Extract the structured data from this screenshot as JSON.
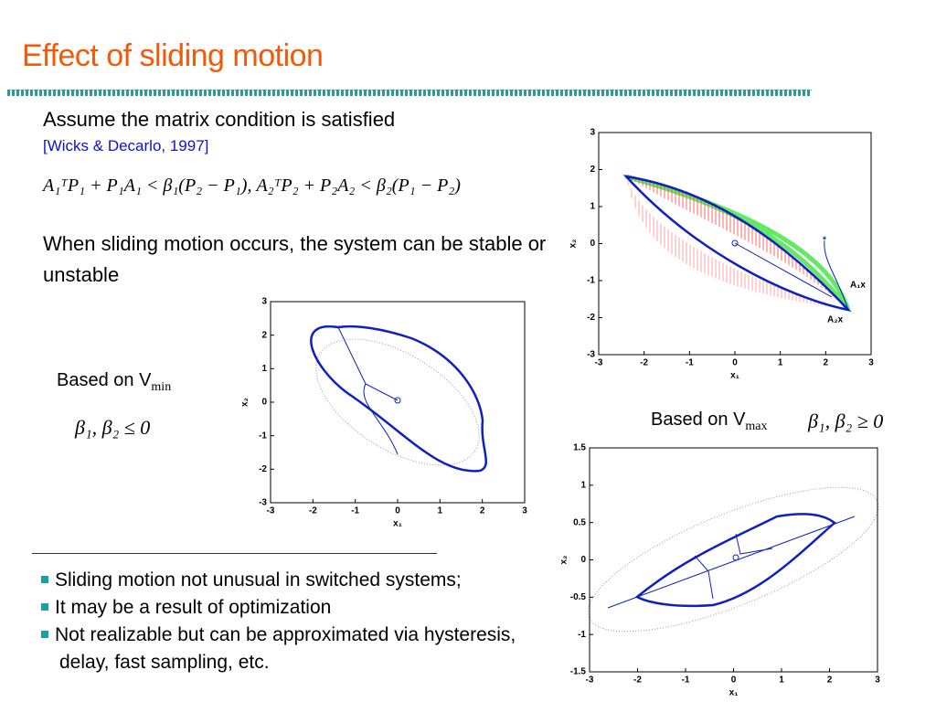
{
  "title": "Effect of sliding motion",
  "condition": {
    "text": "Assume the matrix condition is satisfied",
    "citation": "[Wicks & Decarlo, 1997]",
    "equation": "A₁ᵀP₁ + P₁A₁ < β₁(P₂ − P₁),  A₂ᵀP₂ + P₂A₂ < β₂(P₁ − P₂)"
  },
  "sliding_note": "When sliding motion occurs, the system can be stable or unstable",
  "vmin": {
    "label": "Based on V",
    "subscript": "min",
    "condition": "β₁, β₂ ≤ 0"
  },
  "vmax": {
    "label": "Based on V",
    "subscript": "max",
    "condition": "β₁, β₂ ≥ 0"
  },
  "bullets": [
    "Sliding motion not unusual in switched systems;",
    "It may be a result of optimization",
    "Not realizable but can be approximated via hysteresis, delay, fast sampling, etc."
  ],
  "plots": [
    {
      "xticks": [
        -3,
        -2,
        -1,
        0,
        1,
        2,
        3
      ],
      "yticks": [
        -3,
        -2,
        -1,
        0,
        1,
        2,
        3
      ],
      "xlabel": "x₁",
      "ylabel": "x₂",
      "annotations": [
        "A₁x",
        "A₂x"
      ]
    },
    {
      "xticks": [
        -3,
        -2,
        -1,
        0,
        1,
        2,
        3
      ],
      "yticks": [
        -3,
        -2,
        -1,
        0,
        1,
        2,
        3
      ],
      "xlabel": "x₁",
      "ylabel": "x₂"
    },
    {
      "xticks": [
        -3,
        -2,
        -1,
        0,
        1,
        2,
        3
      ],
      "yticks": [
        -1.5,
        -1,
        -0.5,
        0,
        0.5,
        1,
        1.5
      ],
      "xlabel": "x₁",
      "ylabel": "x₂"
    }
  ]
}
